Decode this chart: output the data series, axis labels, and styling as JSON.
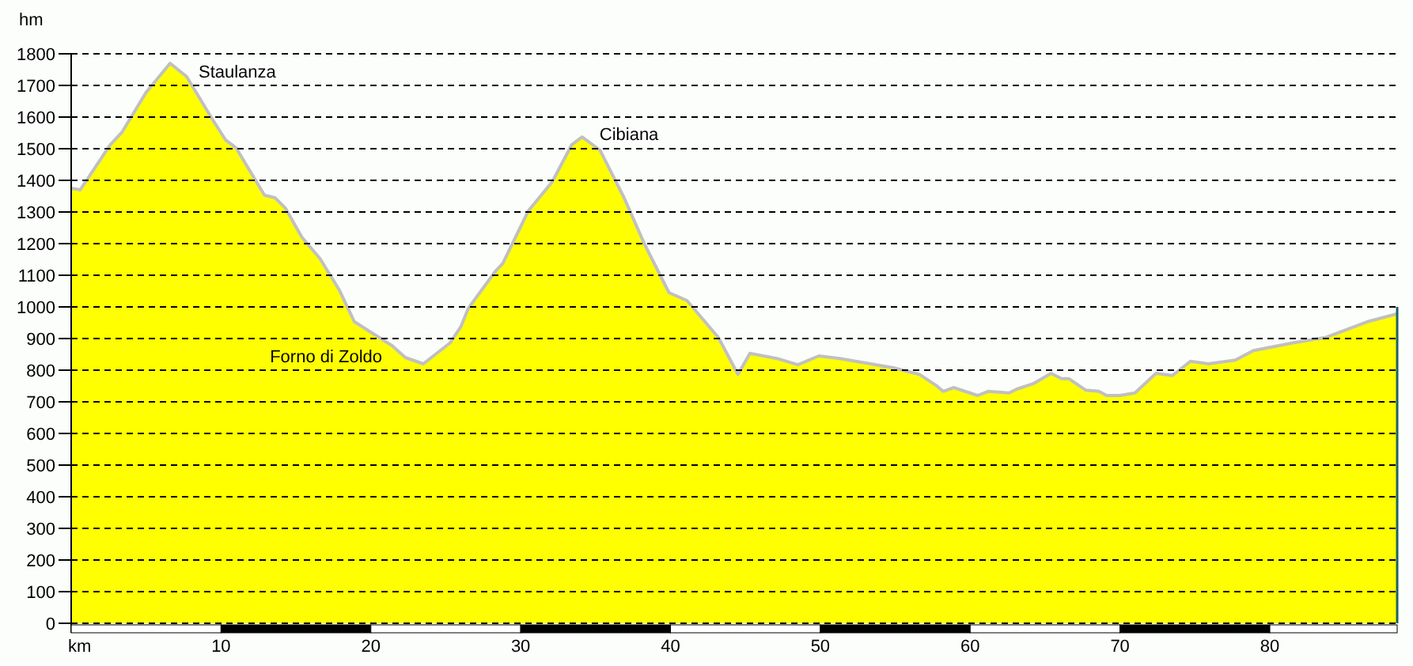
{
  "chart_data": {
    "type": "area",
    "xlabel": "km",
    "ylabel": "hm",
    "x": [
      0,
      0.6,
      2.6,
      3.4,
      5.0,
      6.6,
      7.7,
      9.4,
      10.3,
      11.0,
      12.9,
      13.6,
      14.3,
      15.4,
      16.6,
      17.9,
      18.9,
      20.0,
      21.4,
      22.3,
      23.5,
      25.3,
      26.0,
      26.5,
      27.0,
      28.3,
      28.8,
      30.5,
      32.1,
      33.4,
      34.1,
      35.3,
      36.9,
      38.3,
      39.9,
      41.1,
      43.2,
      44.5,
      45.3,
      47.1,
      48.5,
      49.9,
      51.3,
      54.8,
      56.6,
      57.7,
      58.2,
      58.9,
      60.5,
      61.2,
      62.6,
      63.1,
      64.2,
      65.4,
      66.1,
      66.6,
      67.7,
      68.6,
      69.1,
      70.0,
      71.0,
      72.4,
      73.5,
      74.7,
      75.9,
      77.7,
      78.9,
      81.6,
      83.7,
      85.1,
      86.5,
      88.5
    ],
    "series": [
      {
        "color": "#ffff00",
        "values": [
          1375,
          1370,
          1512,
          1553,
          1678,
          1770,
          1728,
          1595,
          1528,
          1503,
          1353,
          1345,
          1312,
          1220,
          1153,
          1053,
          953,
          920,
          878,
          840,
          820,
          887,
          937,
          995,
          1028,
          1112,
          1137,
          1303,
          1395,
          1512,
          1537,
          1495,
          1345,
          1195,
          1045,
          1020,
          903,
          787,
          853,
          837,
          817,
          845,
          837,
          808,
          787,
          753,
          733,
          745,
          720,
          733,
          728,
          740,
          757,
          790,
          773,
          773,
          737,
          733,
          720,
          720,
          728,
          790,
          783,
          828,
          820,
          832,
          862,
          887,
          903,
          928,
          953,
          978
        ]
      }
    ],
    "xlim": [
      0,
      88.5
    ],
    "xticks": [
      10,
      20,
      30,
      40,
      50,
      60,
      70,
      80
    ],
    "ylim": [
      0,
      1800
    ],
    "yticks": [
      0,
      100,
      200,
      300,
      400,
      500,
      600,
      700,
      800,
      900,
      1000,
      1100,
      1200,
      1300,
      1400,
      1500,
      1600,
      1700,
      1800
    ],
    "grid": "y",
    "annotations": [
      {
        "text": "Staulanza",
        "x": 6.6,
        "y": 1770
      },
      {
        "text": "Forno di Zoldo",
        "x": 23.5,
        "y": 820
      },
      {
        "text": "Cibiana",
        "x": 34.1,
        "y": 1537
      }
    ]
  }
}
